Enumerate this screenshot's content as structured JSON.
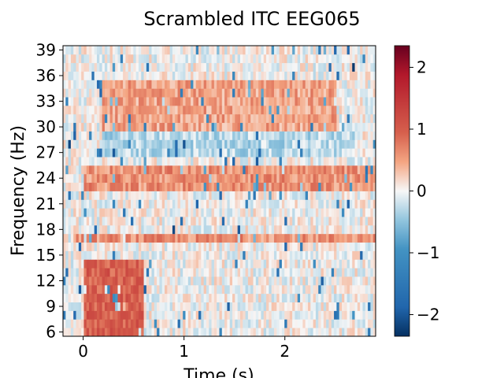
{
  "chart_data": {
    "type": "heatmap",
    "title": "Scrambled ITC EEG065",
    "xlabel": "Time (s)",
    "ylabel": "Frequency (Hz)",
    "xlim": [
      -0.2,
      2.9
    ],
    "ylim": [
      5.5,
      39.5
    ],
    "x_ticks": [
      0,
      1,
      2
    ],
    "y_ticks": [
      6,
      9,
      12,
      15,
      18,
      21,
      24,
      27,
      30,
      33,
      36,
      39
    ],
    "colormap": "RdBu_r",
    "color_low": "#053061",
    "color_mid": "#f7f7f7",
    "color_high": "#67001f",
    "colorbar_range": [
      -2.35,
      2.35
    ],
    "colorbar_ticks": [
      -2,
      -1,
      0,
      1,
      2
    ],
    "x_range_data": [
      -0.2,
      2.9
    ],
    "freqs_hz": [
      6,
      7,
      8,
      9,
      10,
      11,
      12,
      13,
      14,
      15,
      16,
      17,
      18,
      19,
      20,
      21,
      22,
      23,
      24,
      25,
      26,
      27,
      28,
      29,
      30,
      31,
      32,
      33,
      34,
      35,
      36,
      37,
      38,
      39
    ],
    "band_summary": [
      {
        "freq_hz": [
          6,
          14
        ],
        "time_s": [
          0.0,
          0.6
        ],
        "approx_value": 1.0
      },
      {
        "freq_hz": [
          17,
          17
        ],
        "time_s": [
          -0.1,
          2.9
        ],
        "approx_value": 0.6
      },
      {
        "freq_hz": [
          23,
          25
        ],
        "time_s": [
          0.0,
          2.9
        ],
        "approx_value": 0.6
      },
      {
        "freq_hz": [
          30,
          35
        ],
        "time_s": [
          0.2,
          2.5
        ],
        "approx_value": 0.5
      },
      {
        "freq_hz": [
          27,
          29
        ],
        "time_s": [
          0.2,
          2.7
        ],
        "approx_value": -0.3
      }
    ]
  }
}
